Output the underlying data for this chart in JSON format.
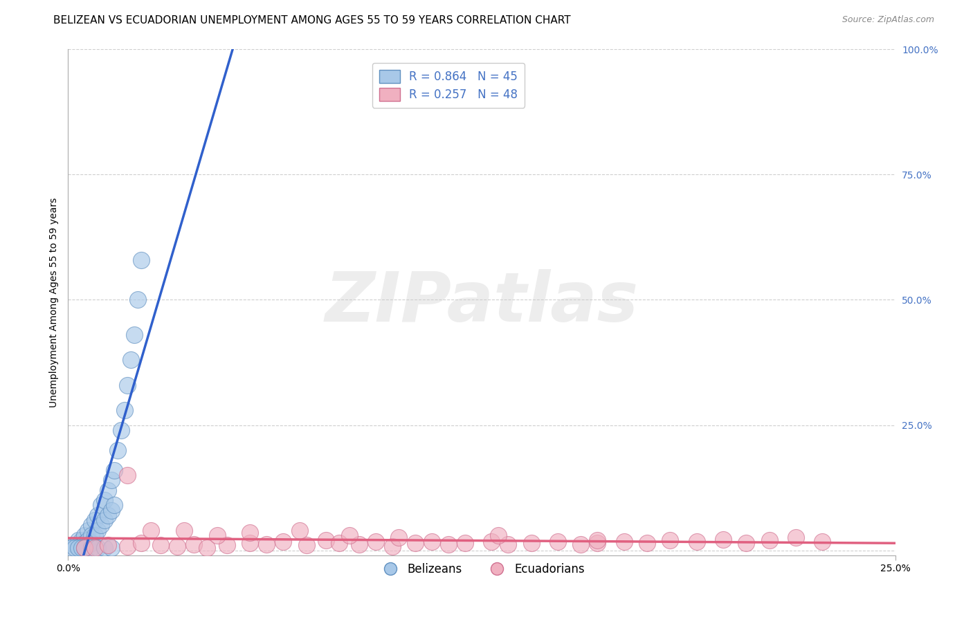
{
  "title": "BELIZEAN VS ECUADORIAN UNEMPLOYMENT AMONG AGES 55 TO 59 YEARS CORRELATION CHART",
  "source": "Source: ZipAtlas.com",
  "ylabel": "Unemployment Among Ages 55 to 59 years",
  "xlim": [
    0.0,
    0.25
  ],
  "ylim": [
    -0.01,
    1.0
  ],
  "ytick_positions": [
    0.0,
    0.25,
    0.5,
    0.75,
    1.0
  ],
  "ytick_labels": [
    "",
    "25.0%",
    "50.0%",
    "75.0%",
    "100.0%"
  ],
  "xtick_positions": [
    0.0,
    0.25
  ],
  "xtick_labels": [
    "0.0%",
    "25.0%"
  ],
  "belizean_color": "#a8c8e8",
  "belizean_edge": "#6090c0",
  "ecuadorian_color": "#f0b0c0",
  "ecuadorian_edge": "#d07090",
  "blue_line_color": "#3060cc",
  "pink_line_color": "#e06080",
  "R_belizean": 0.864,
  "N_belizean": 45,
  "R_ecuadorian": 0.257,
  "N_ecuadorian": 48,
  "background_color": "#ffffff",
  "watermark_text": "ZIPatlas",
  "belizean_x": [
    0.002,
    0.003,
    0.003,
    0.004,
    0.004,
    0.005,
    0.005,
    0.005,
    0.006,
    0.006,
    0.006,
    0.007,
    0.007,
    0.007,
    0.008,
    0.008,
    0.009,
    0.009,
    0.01,
    0.01,
    0.011,
    0.011,
    0.012,
    0.012,
    0.013,
    0.013,
    0.014,
    0.014,
    0.015,
    0.016,
    0.017,
    0.018,
    0.019,
    0.02,
    0.021,
    0.022,
    0.001,
    0.002,
    0.003,
    0.004,
    0.005,
    0.007,
    0.009,
    0.011,
    0.013
  ],
  "belizean_y": [
    0.01,
    0.02,
    0.005,
    0.02,
    0.01,
    0.03,
    0.015,
    0.005,
    0.04,
    0.02,
    0.01,
    0.05,
    0.03,
    0.015,
    0.06,
    0.03,
    0.07,
    0.04,
    0.09,
    0.05,
    0.1,
    0.06,
    0.12,
    0.07,
    0.14,
    0.08,
    0.16,
    0.09,
    0.2,
    0.24,
    0.28,
    0.33,
    0.38,
    0.43,
    0.5,
    0.58,
    0.005,
    0.005,
    0.005,
    0.005,
    0.005,
    0.005,
    0.005,
    0.005,
    0.005
  ],
  "ecuadorian_x": [
    0.005,
    0.008,
    0.012,
    0.018,
    0.022,
    0.028,
    0.033,
    0.038,
    0.042,
    0.048,
    0.055,
    0.06,
    0.065,
    0.072,
    0.078,
    0.082,
    0.088,
    0.093,
    0.098,
    0.105,
    0.11,
    0.115,
    0.12,
    0.128,
    0.133,
    0.14,
    0.148,
    0.155,
    0.16,
    0.168,
    0.175,
    0.182,
    0.19,
    0.198,
    0.205,
    0.212,
    0.22,
    0.228,
    0.018,
    0.025,
    0.035,
    0.045,
    0.055,
    0.07,
    0.085,
    0.1,
    0.13,
    0.16
  ],
  "ecuadorian_y": [
    0.005,
    0.005,
    0.01,
    0.008,
    0.015,
    0.01,
    0.008,
    0.012,
    0.005,
    0.01,
    0.015,
    0.012,
    0.018,
    0.01,
    0.02,
    0.015,
    0.012,
    0.018,
    0.008,
    0.015,
    0.018,
    0.012,
    0.015,
    0.018,
    0.012,
    0.015,
    0.018,
    0.012,
    0.015,
    0.018,
    0.015,
    0.02,
    0.018,
    0.022,
    0.015,
    0.02,
    0.025,
    0.018,
    0.15,
    0.04,
    0.04,
    0.03,
    0.035,
    0.04,
    0.03,
    0.025,
    0.03,
    0.02
  ],
  "title_fontsize": 11,
  "axis_label_fontsize": 10,
  "tick_fontsize": 10,
  "legend_fontsize": 12
}
